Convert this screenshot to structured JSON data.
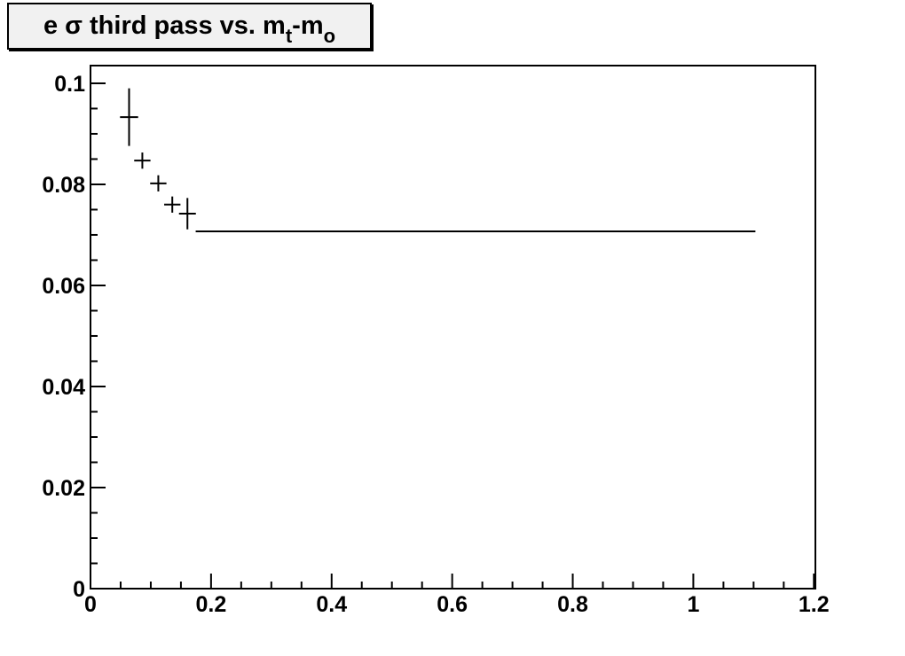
{
  "title": {
    "full": "e σ third pass vs. m_t-m_o",
    "prefix": "e σ third pass vs. m",
    "sub_t": "t",
    "mid": "-m",
    "sub_o": "o"
  },
  "colors": {
    "canvas_background": "#ffffff",
    "frame_background": "#ffffff",
    "foreground": "#000000",
    "title_box_fill": "#f1f1f1"
  },
  "chart_data": {
    "type": "scatter",
    "title": "e σ third pass vs. m_t-m_o",
    "grid": false,
    "legend": false,
    "xlim": [
      0,
      1.2025
    ],
    "ylim": [
      0,
      0.1035
    ],
    "x_major_ticks": [
      0,
      0.2,
      0.4,
      0.6,
      0.8,
      1.0,
      1.2
    ],
    "x_major_labels": [
      "0",
      "0.2",
      "0.4",
      "0.6",
      "0.8",
      "1",
      "1.2"
    ],
    "x_minor_step": 0.05,
    "y_major_ticks": [
      0,
      0.02,
      0.04,
      0.06,
      0.08,
      0.1
    ],
    "y_major_labels": [
      "0",
      "0.02",
      "0.04",
      "0.06",
      "0.08",
      "0.1"
    ],
    "y_minor_step": 0.005,
    "points": [
      {
        "x": 0.064,
        "y": 0.0933,
        "xerr": 0.015,
        "yerr": 0.0057
      },
      {
        "x": 0.086,
        "y": 0.0847,
        "xerr": 0.0135,
        "yerr": 0.0016
      },
      {
        "x": 0.1125,
        "y": 0.0802,
        "xerr": 0.0135,
        "yerr": 0.0016
      },
      {
        "x": 0.1357,
        "y": 0.076,
        "xerr": 0.0135,
        "yerr": 0.0016
      },
      {
        "x": 0.1608,
        "y": 0.0742,
        "xerr": 0.014,
        "yerr": 0.0031
      }
    ],
    "fit_line": {
      "y": 0.0707,
      "x_start": 0.1745,
      "x_end": 1.103
    }
  }
}
